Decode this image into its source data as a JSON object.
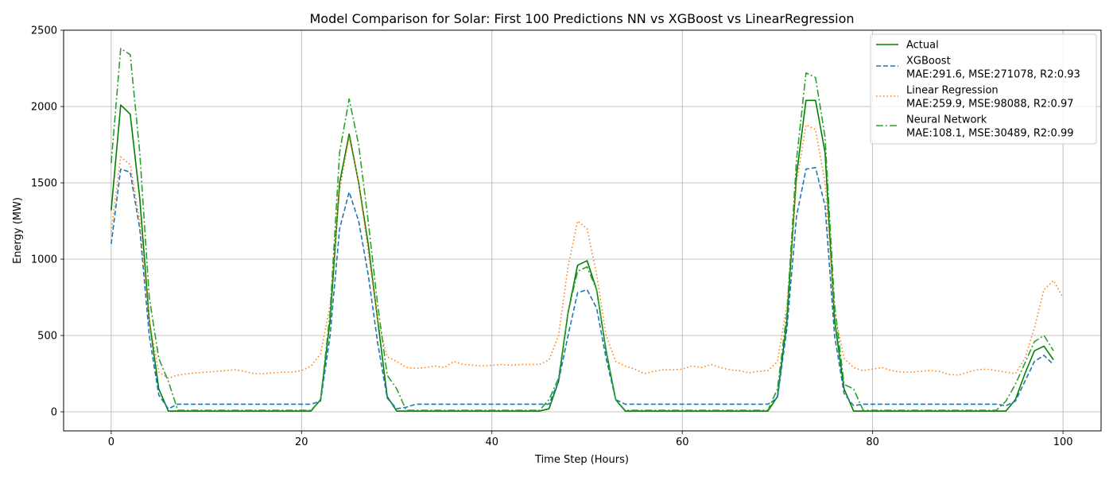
{
  "chart_data": {
    "type": "line",
    "title": "Model Comparison for Solar: First 100 Predictions NN vs XGBoost vs LinearRegression",
    "xlabel": "Time Step (Hours)",
    "ylabel": "Energy (MW)",
    "xlim": [
      -5,
      104
    ],
    "ylim": [
      -125,
      2500
    ],
    "xticks": [
      0,
      20,
      40,
      60,
      80,
      100
    ],
    "yticks": [
      0,
      500,
      1000,
      1500,
      2000,
      2500
    ],
    "grid": true,
    "legend_position": "top-right",
    "series": [
      {
        "name": "Actual",
        "legend_label": "Actual",
        "color": "#008000",
        "dash": "solid",
        "values": [
          1320,
          2010,
          1950,
          1400,
          600,
          150,
          5,
          5,
          5,
          5,
          5,
          5,
          5,
          5,
          5,
          5,
          5,
          5,
          5,
          5,
          5,
          5,
          80,
          600,
          1500,
          1820,
          1500,
          1100,
          600,
          100,
          5,
          5,
          5,
          5,
          5,
          5,
          5,
          5,
          5,
          5,
          5,
          5,
          5,
          5,
          5,
          5,
          20,
          200,
          650,
          960,
          990,
          800,
          400,
          80,
          5,
          5,
          5,
          5,
          5,
          5,
          5,
          5,
          5,
          5,
          5,
          5,
          5,
          5,
          5,
          5,
          100,
          600,
          1550,
          2040,
          2040,
          1700,
          600,
          150,
          5,
          5,
          5,
          5,
          5,
          5,
          5,
          5,
          5,
          5,
          5,
          5,
          5,
          5,
          5,
          5,
          5,
          80,
          250,
          400,
          430,
          340
        ]
      },
      {
        "name": "XGBoost",
        "legend_label": "XGBoost",
        "legend_metrics": "MAE:291.6, MSE:271078, R2:0.93",
        "color": "#1f77b4",
        "dash": "dashed",
        "values": [
          1100,
          1590,
          1570,
          1200,
          500,
          110,
          20,
          50,
          50,
          50,
          50,
          50,
          50,
          50,
          50,
          50,
          50,
          50,
          50,
          50,
          50,
          50,
          70,
          500,
          1200,
          1440,
          1250,
          900,
          450,
          90,
          20,
          30,
          50,
          50,
          50,
          50,
          50,
          50,
          50,
          50,
          50,
          50,
          50,
          50,
          50,
          50,
          50,
          200,
          500,
          780,
          800,
          680,
          350,
          80,
          50,
          50,
          50,
          50,
          50,
          50,
          50,
          50,
          50,
          50,
          50,
          50,
          50,
          50,
          50,
          50,
          90,
          550,
          1280,
          1590,
          1600,
          1350,
          500,
          120,
          40,
          50,
          50,
          50,
          50,
          50,
          50,
          50,
          50,
          50,
          50,
          50,
          50,
          50,
          50,
          50,
          40,
          70,
          200,
          330,
          370,
          310
        ]
      },
      {
        "name": "Linear Regression",
        "legend_label": "Linear Regression",
        "legend_metrics": "MAE:259.9, MSE:98088, R2:0.97",
        "color": "#ff7f0e",
        "dash": "dotted",
        "values": [
          1180,
          1670,
          1620,
          1250,
          600,
          260,
          220,
          240,
          250,
          255,
          260,
          265,
          270,
          275,
          265,
          250,
          250,
          255,
          260,
          260,
          270,
          300,
          380,
          700,
          1450,
          1800,
          1500,
          1050,
          600,
          360,
          330,
          290,
          285,
          290,
          300,
          290,
          330,
          310,
          305,
          300,
          305,
          310,
          305,
          310,
          310,
          310,
          340,
          500,
          950,
          1250,
          1200,
          900,
          500,
          330,
          300,
          280,
          250,
          265,
          275,
          275,
          280,
          300,
          290,
          310,
          290,
          275,
          270,
          255,
          265,
          270,
          330,
          700,
          1500,
          1880,
          1850,
          1500,
          650,
          350,
          290,
          270,
          280,
          290,
          270,
          260,
          260,
          265,
          270,
          265,
          245,
          240,
          260,
          275,
          280,
          270,
          260,
          250,
          350,
          550,
          800,
          860,
          750
        ]
      },
      {
        "name": "Neural Network",
        "legend_label": "Neural Network",
        "legend_metrics": "MAE:108.1, MSE:30489, R2:0.99",
        "color": "#2ca02c",
        "dash": "dashdot",
        "values": [
          1630,
          2380,
          2340,
          1700,
          750,
          350,
          200,
          10,
          10,
          10,
          10,
          10,
          10,
          10,
          10,
          10,
          10,
          10,
          10,
          10,
          10,
          10,
          80,
          650,
          1700,
          2050,
          1750,
          1250,
          700,
          240,
          150,
          10,
          10,
          10,
          10,
          10,
          10,
          10,
          10,
          10,
          10,
          10,
          10,
          10,
          10,
          10,
          80,
          220,
          650,
          920,
          950,
          800,
          400,
          80,
          10,
          10,
          10,
          10,
          10,
          10,
          10,
          10,
          10,
          10,
          10,
          10,
          10,
          10,
          10,
          10,
          150,
          650,
          1650,
          2220,
          2190,
          1800,
          700,
          180,
          150,
          10,
          10,
          10,
          10,
          10,
          10,
          10,
          10,
          10,
          10,
          10,
          10,
          10,
          10,
          10,
          70,
          180,
          320,
          460,
          500,
          400
        ]
      }
    ]
  }
}
